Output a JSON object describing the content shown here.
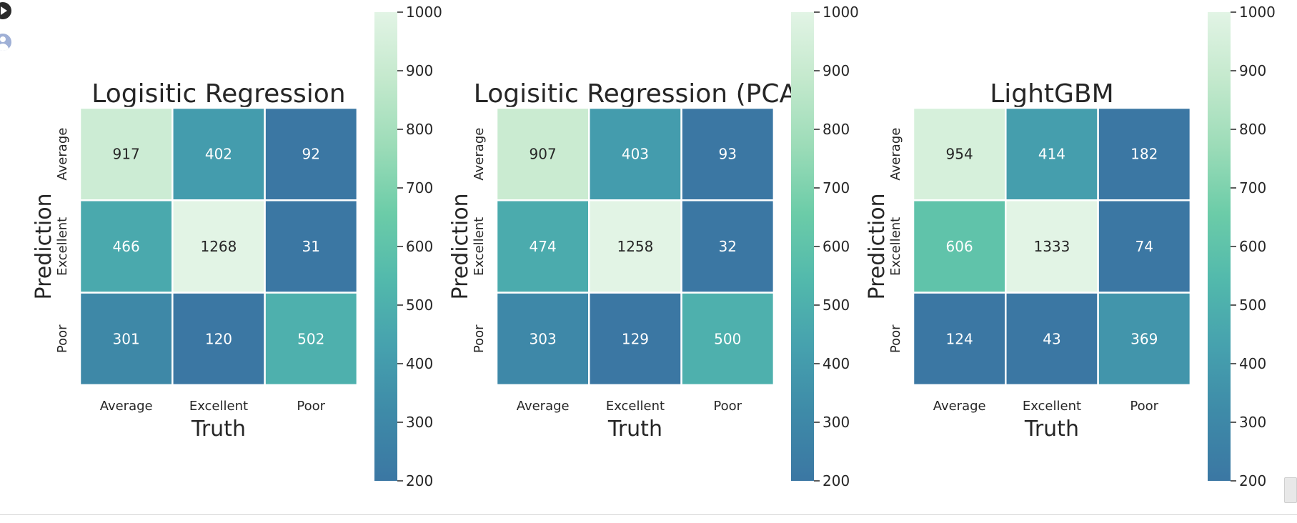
{
  "chart_data": [
    {
      "type": "heatmap",
      "title": "Logisitic Regression",
      "xlabel": "Truth",
      "ylabel": "Prediction",
      "x_categories": [
        "Average",
        "Excellent",
        "Poor"
      ],
      "y_categories": [
        "Average",
        "Excellent",
        "Poor"
      ],
      "values": [
        [
          917,
          402,
          92
        ],
        [
          466,
          1268,
          31
        ],
        [
          301,
          120,
          502
        ]
      ],
      "colorbar": {
        "range": [
          200,
          1000
        ],
        "ticks": [
          200,
          300,
          400,
          500,
          600,
          700,
          800,
          900,
          1000
        ]
      }
    },
    {
      "type": "heatmap",
      "title": "Logisitic Regression (PCA",
      "xlabel": "Truth",
      "ylabel": "Prediction",
      "x_categories": [
        "Average",
        "Excellent",
        "Poor"
      ],
      "y_categories": [
        "Average",
        "Excellent",
        "Poor"
      ],
      "values": [
        [
          907,
          403,
          93
        ],
        [
          474,
          1258,
          32
        ],
        [
          303,
          129,
          500
        ]
      ],
      "colorbar": {
        "range": [
          200,
          1000
        ],
        "ticks": [
          200,
          300,
          400,
          500,
          600,
          700,
          800,
          900,
          1000
        ]
      }
    },
    {
      "type": "heatmap",
      "title": "LightGBM",
      "xlabel": "Truth",
      "ylabel": "Prediction",
      "x_categories": [
        "Average",
        "Excellent",
        "Poor"
      ],
      "y_categories": [
        "Average",
        "Excellent",
        "Poor"
      ],
      "values": [
        [
          954,
          414,
          182
        ],
        [
          606,
          1333,
          74
        ],
        [
          124,
          43,
          369
        ]
      ],
      "colorbar": {
        "range": [
          200,
          1000
        ],
        "ticks": [
          200,
          300,
          400,
          500,
          600,
          700,
          800,
          900,
          1000
        ]
      }
    }
  ],
  "colormap": [
    "#3b77a3",
    "#3e8aa8",
    "#46a1ae",
    "#52b9ac",
    "#6ccca8",
    "#9cdcb8",
    "#c4e9cd",
    "#e2f4e5"
  ],
  "icons": {
    "top": "play-icon",
    "second": "user-icon"
  }
}
